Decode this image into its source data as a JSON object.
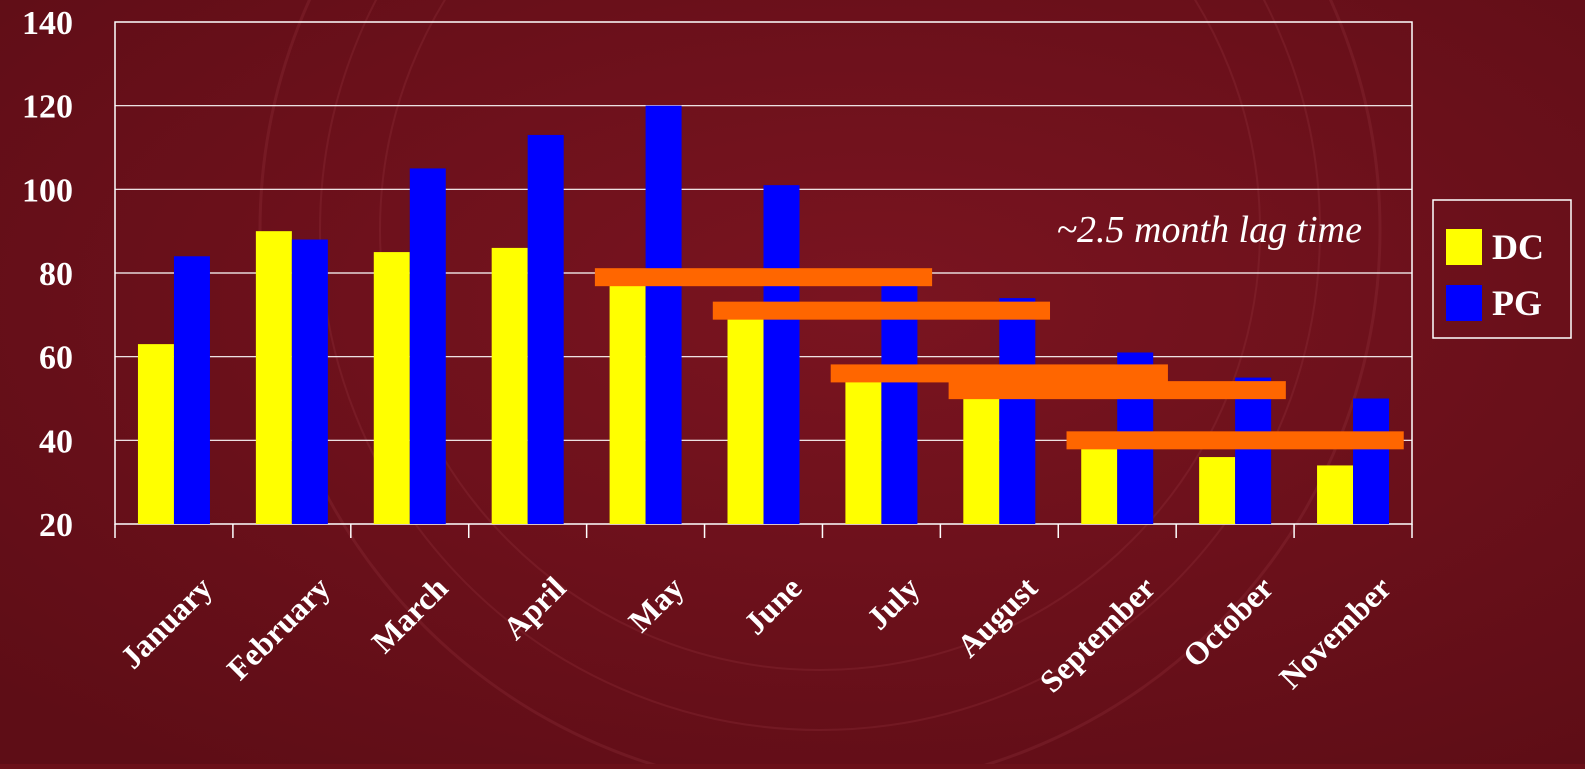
{
  "chart_data": {
    "type": "bar",
    "categories": [
      "January",
      "February",
      "March",
      "April",
      "May",
      "June",
      "July",
      "August",
      "September",
      "October",
      "November"
    ],
    "series": [
      {
        "name": "DC",
        "color": "#ffff00",
        "values": [
          63,
          90,
          85,
          86,
          79,
          71,
          56,
          51,
          39,
          36,
          34
        ]
      },
      {
        "name": "PG",
        "color": "#0000ff",
        "values": [
          84,
          88,
          105,
          113,
          120,
          101,
          80,
          74,
          61,
          55,
          50
        ]
      }
    ],
    "ylim": [
      20,
      140
    ],
    "yticks": [
      "20",
      "40",
      "60",
      "80",
      "100",
      "120",
      "140"
    ],
    "grid": true,
    "legend_position": "right",
    "annotation": "~2.5 month lag time",
    "lag_lines": {
      "color": "#ff6600",
      "lines": [
        {
          "from": "May",
          "to": "July",
          "y": 79
        },
        {
          "from": "June",
          "to": "August",
          "y": 71
        },
        {
          "from": "July",
          "to": "September",
          "y": 56
        },
        {
          "from": "August",
          "to": "October",
          "y": 52
        },
        {
          "from": "September",
          "to": "November",
          "y": 40
        }
      ]
    },
    "colors": {
      "background": "#6b1019",
      "grid": "#ffffff",
      "text": "#ffffff"
    }
  }
}
